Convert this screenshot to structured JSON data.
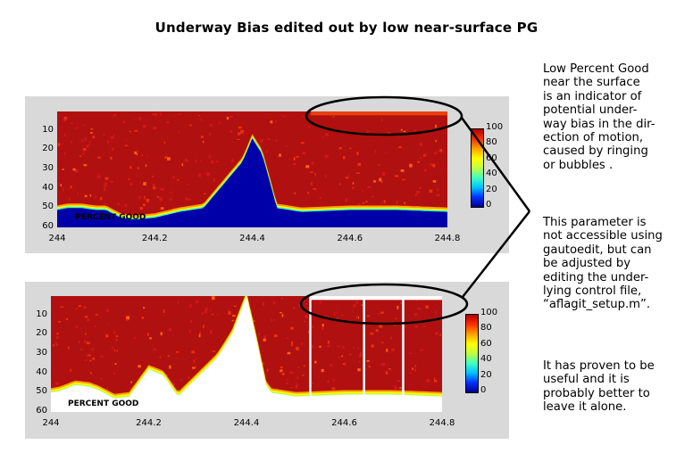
{
  "title": "Underway Bias edited out by low near-surface PG",
  "annotation_paragraphs": [
    "Low Percent Good\nnear the surface\nis an indicator of\npotential under-\nway bias in the dir-\nection of motion,\ncaused by ringing\nor bubbles .",
    "This parameter is\nnot accessible using\ngautoedit, but can\nbe adjusted by\nediting the under-\nlying control file,\n“aflagit_setup.m”.",
    "It has proven to be\nuseful and it is\nprobably better to\nleave it alone."
  ],
  "colors": {
    "panel_bg": "#d9d9d9",
    "high_pg": "#b01010",
    "low_pg": "#0000a8",
    "flagged": "#ffffff",
    "colormap": [
      "#00008a",
      "#0030ff",
      "#00c0ff",
      "#40ffc0",
      "#c0ff40",
      "#ffff00",
      "#ffa000",
      "#ff3000",
      "#b00000"
    ]
  },
  "chart_data": [
    {
      "type": "heatmap",
      "plot_label": "PERCENT GOOD",
      "x_ticks": [
        "244",
        "244.2",
        "244.4",
        "244.6",
        "244.8"
      ],
      "xlim": [
        244,
        244.8
      ],
      "y_ticks": [
        "10",
        "20",
        "30",
        "40",
        "50",
        "60"
      ],
      "ylim": [
        0,
        60
      ],
      "y_reversed": true,
      "colorbar_ticks": [
        "100",
        "80",
        "60",
        "40",
        "20",
        "0"
      ],
      "colorbar_range": [
        0,
        100
      ],
      "bottom_boundary": [
        [
          244.0,
          51
        ],
        [
          244.02,
          50
        ],
        [
          244.05,
          50
        ],
        [
          244.08,
          51
        ],
        [
          244.1,
          51
        ],
        [
          244.13,
          55
        ],
        [
          244.16,
          56
        ],
        [
          244.2,
          55
        ],
        [
          244.25,
          52
        ],
        [
          244.3,
          50
        ],
        [
          244.35,
          35
        ],
        [
          244.38,
          26
        ],
        [
          244.4,
          14
        ],
        [
          244.42,
          22
        ],
        [
          244.44,
          40
        ],
        [
          244.45,
          50
        ],
        [
          244.5,
          52
        ],
        [
          244.6,
          51
        ],
        [
          244.7,
          51
        ],
        [
          244.8,
          52
        ]
      ],
      "flagged_surface_region": {
        "x": [
          244.52,
          244.8
        ],
        "depth": 2
      }
    },
    {
      "type": "heatmap",
      "plot_label": "PERCENT GOOD",
      "x_ticks": [
        "244",
        "244.2",
        "244.4",
        "244.6",
        "244.8"
      ],
      "xlim": [
        244,
        244.8
      ],
      "y_ticks": [
        "10",
        "20",
        "30",
        "40",
        "50",
        "60"
      ],
      "ylim": [
        0,
        60
      ],
      "y_reversed": true,
      "colorbar_ticks": [
        "100",
        "80",
        "60",
        "40",
        "20",
        "0"
      ],
      "colorbar_range": [
        0,
        100
      ],
      "bottom_boundary": [
        [
          244.0,
          50
        ],
        [
          244.02,
          49
        ],
        [
          244.05,
          46
        ],
        [
          244.08,
          47
        ],
        [
          244.1,
          49
        ],
        [
          244.13,
          53
        ],
        [
          244.16,
          52
        ],
        [
          244.2,
          38
        ],
        [
          244.23,
          41
        ],
        [
          244.26,
          52
        ],
        [
          244.3,
          42
        ],
        [
          244.34,
          32
        ],
        [
          244.37,
          20
        ],
        [
          244.4,
          0
        ],
        [
          244.42,
          22
        ],
        [
          244.44,
          46
        ],
        [
          244.45,
          50
        ],
        [
          244.5,
          52
        ],
        [
          244.6,
          51
        ],
        [
          244.7,
          51
        ],
        [
          244.8,
          52
        ]
      ],
      "flagged_columns": [
        244.53,
        244.64,
        244.72
      ],
      "flagged_surface_region": {
        "x": [
          244.53,
          244.8
        ],
        "depth": 2
      }
    }
  ]
}
